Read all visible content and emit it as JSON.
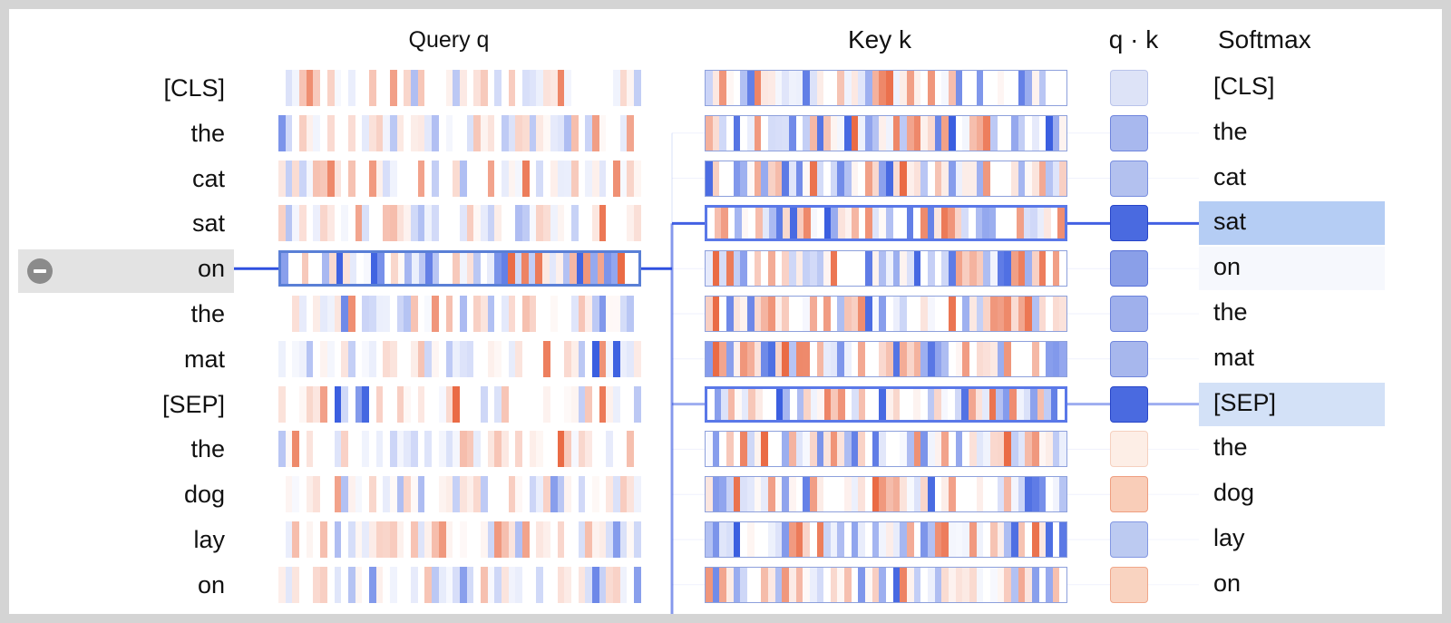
{
  "headers": {
    "query": "Query q",
    "key": "Key k",
    "dot": "q · k",
    "softmax": "Softmax"
  },
  "tokens": [
    "[CLS]",
    "the",
    "cat",
    "sat",
    "on",
    "the",
    "mat",
    "[SEP]",
    "the",
    "dog",
    "lay",
    "on"
  ],
  "selected_index": 4,
  "attended_indices": [
    3,
    7
  ],
  "colors": {
    "positive": "#ea6b45",
    "negative": "#3b5fe0",
    "link": "#2f50e0",
    "highlight_strong": "#b5cdf4",
    "highlight_light": "#d3e1f7",
    "selected_row": "#e3e3e3"
  },
  "qk_colors": [
    {
      "fill": "#dde3f7",
      "border": "#b9c3ea"
    },
    {
      "fill": "#a8b8ee",
      "border": "#6f85dd"
    },
    {
      "fill": "#b3c1ef",
      "border": "#7a8fe0"
    },
    {
      "fill": "#4a6ae0",
      "border": "#2745c8"
    },
    {
      "fill": "#8a9fe8",
      "border": "#5770d8"
    },
    {
      "fill": "#9fb0ec",
      "border": "#6b82dc"
    },
    {
      "fill": "#a7b7ed",
      "border": "#7086dc"
    },
    {
      "fill": "#4a6ae0",
      "border": "#2745c8"
    },
    {
      "fill": "#fdeee6",
      "border": "#f5d0bf"
    },
    {
      "fill": "#f9cdb8",
      "border": "#ef9e80"
    },
    {
      "fill": "#bccaf1",
      "border": "#8397e2"
    },
    {
      "fill": "#f9d3c0",
      "border": "#f0a78a"
    }
  ],
  "softmax_highlight": [
    null,
    null,
    null,
    "highlight_strong",
    "faint",
    null,
    null,
    "highlight_light",
    null,
    null,
    null,
    null
  ]
}
